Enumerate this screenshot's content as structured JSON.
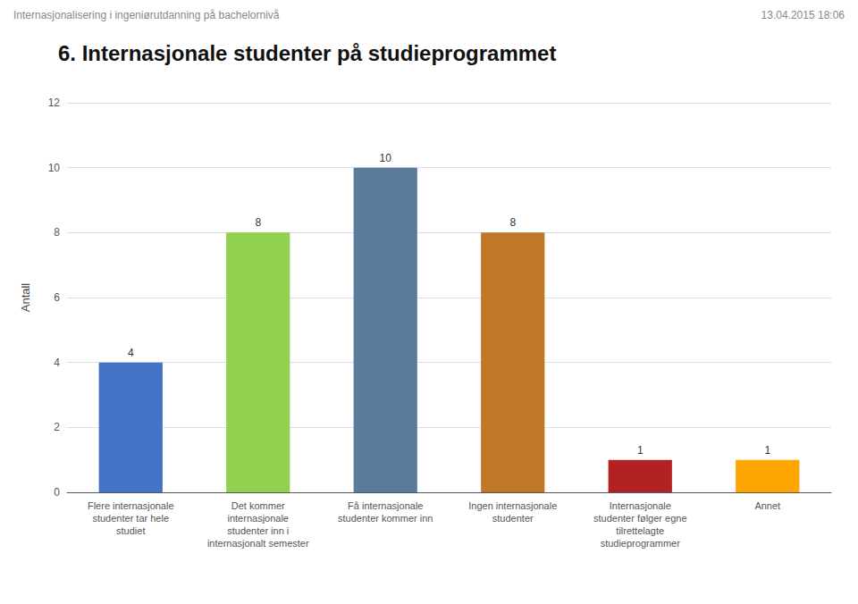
{
  "chart_data": {
    "type": "bar",
    "title": "6. Internasjonale studenter på studieprogrammet",
    "annotations": [
      "Internasjonalisering i ingeniørutdanning på bachelornivå",
      "13.04.2015 18:06"
    ],
    "ylabel": "Antall",
    "categories": [
      "Flere internasjonale\nstudenter tar hele\nstudiet",
      "Det kommer\ninternasjonale\nstudenter inn i\ninternasjonalt semester",
      "Få internasjonale\nstudenter kommer inn",
      "Ingen internasjonale\nstudenter",
      "Internasjonale\nstudenter følger egne\ntilrettelagte\nstudieprogrammer",
      "Annet"
    ],
    "values": [
      4,
      8,
      10,
      8,
      1,
      1
    ],
    "colors": [
      "#4472C4",
      "#92D050",
      "#5B7B9A",
      "#C07828",
      "#B22222",
      "#FFA500"
    ],
    "ylim": [
      0,
      12
    ],
    "yticks": [
      0,
      2,
      4,
      6,
      8,
      10,
      12
    ],
    "grid": true,
    "data_labels": true
  }
}
